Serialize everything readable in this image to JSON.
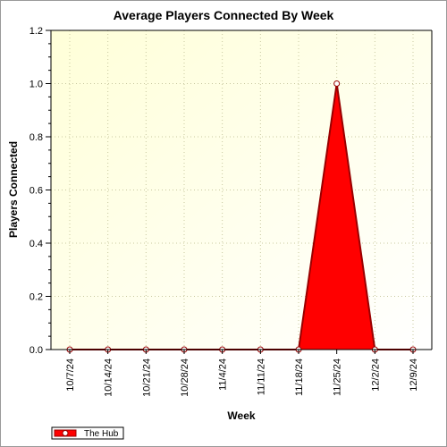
{
  "chart_data": {
    "type": "area",
    "title": "Average Players Connected By Week",
    "xlabel": "Week",
    "ylabel": "Players Connected",
    "categories": [
      "10/7/24",
      "10/14/24",
      "10/21/24",
      "10/28/24",
      "11/4/24",
      "11/11/24",
      "11/18/24",
      "11/25/24",
      "12/2/24",
      "12/9/24"
    ],
    "series": [
      {
        "name": "The Hub",
        "values": [
          0,
          0,
          0,
          0,
          0,
          0,
          0,
          1.0,
          0,
          0
        ],
        "color": "#ff0000",
        "line_color": "#990000"
      }
    ],
    "ylim": [
      0,
      1.2
    ],
    "yticks": [
      "0.0",
      "0.2",
      "0.4",
      "0.6",
      "0.8",
      "1.0",
      "1.2"
    ],
    "grid": true,
    "legend_position": "bottom-left",
    "plot_background": "#ffffe6"
  }
}
